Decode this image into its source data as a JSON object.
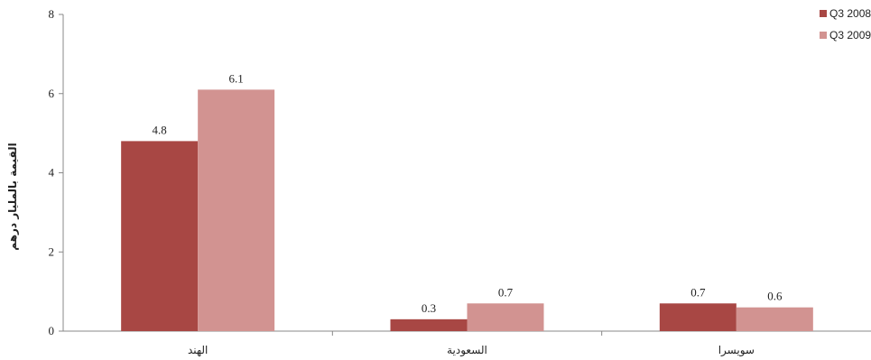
{
  "chart_data": {
    "type": "bar",
    "title": "",
    "xlabel": "",
    "ylabel": "القيمة بالمليار درهم",
    "ylim": [
      0,
      8
    ],
    "yticks": [
      "0",
      "2",
      "4",
      "6",
      "8"
    ],
    "grid": false,
    "legend_position": "top-right",
    "categories": [
      "الهند",
      "السعودية",
      "سويسرا"
    ],
    "series": [
      {
        "name": "Q3 2008",
        "color": "#a84744",
        "values": [
          4.8,
          0.3,
          0.7
        ],
        "labels": [
          "4.8",
          "0.3",
          "0.7"
        ]
      },
      {
        "name": "Q3 2009",
        "color": "#d29391",
        "values": [
          6.1,
          0.7,
          0.6
        ],
        "labels": [
          "6.1",
          "0.7",
          "0.6"
        ]
      }
    ]
  }
}
